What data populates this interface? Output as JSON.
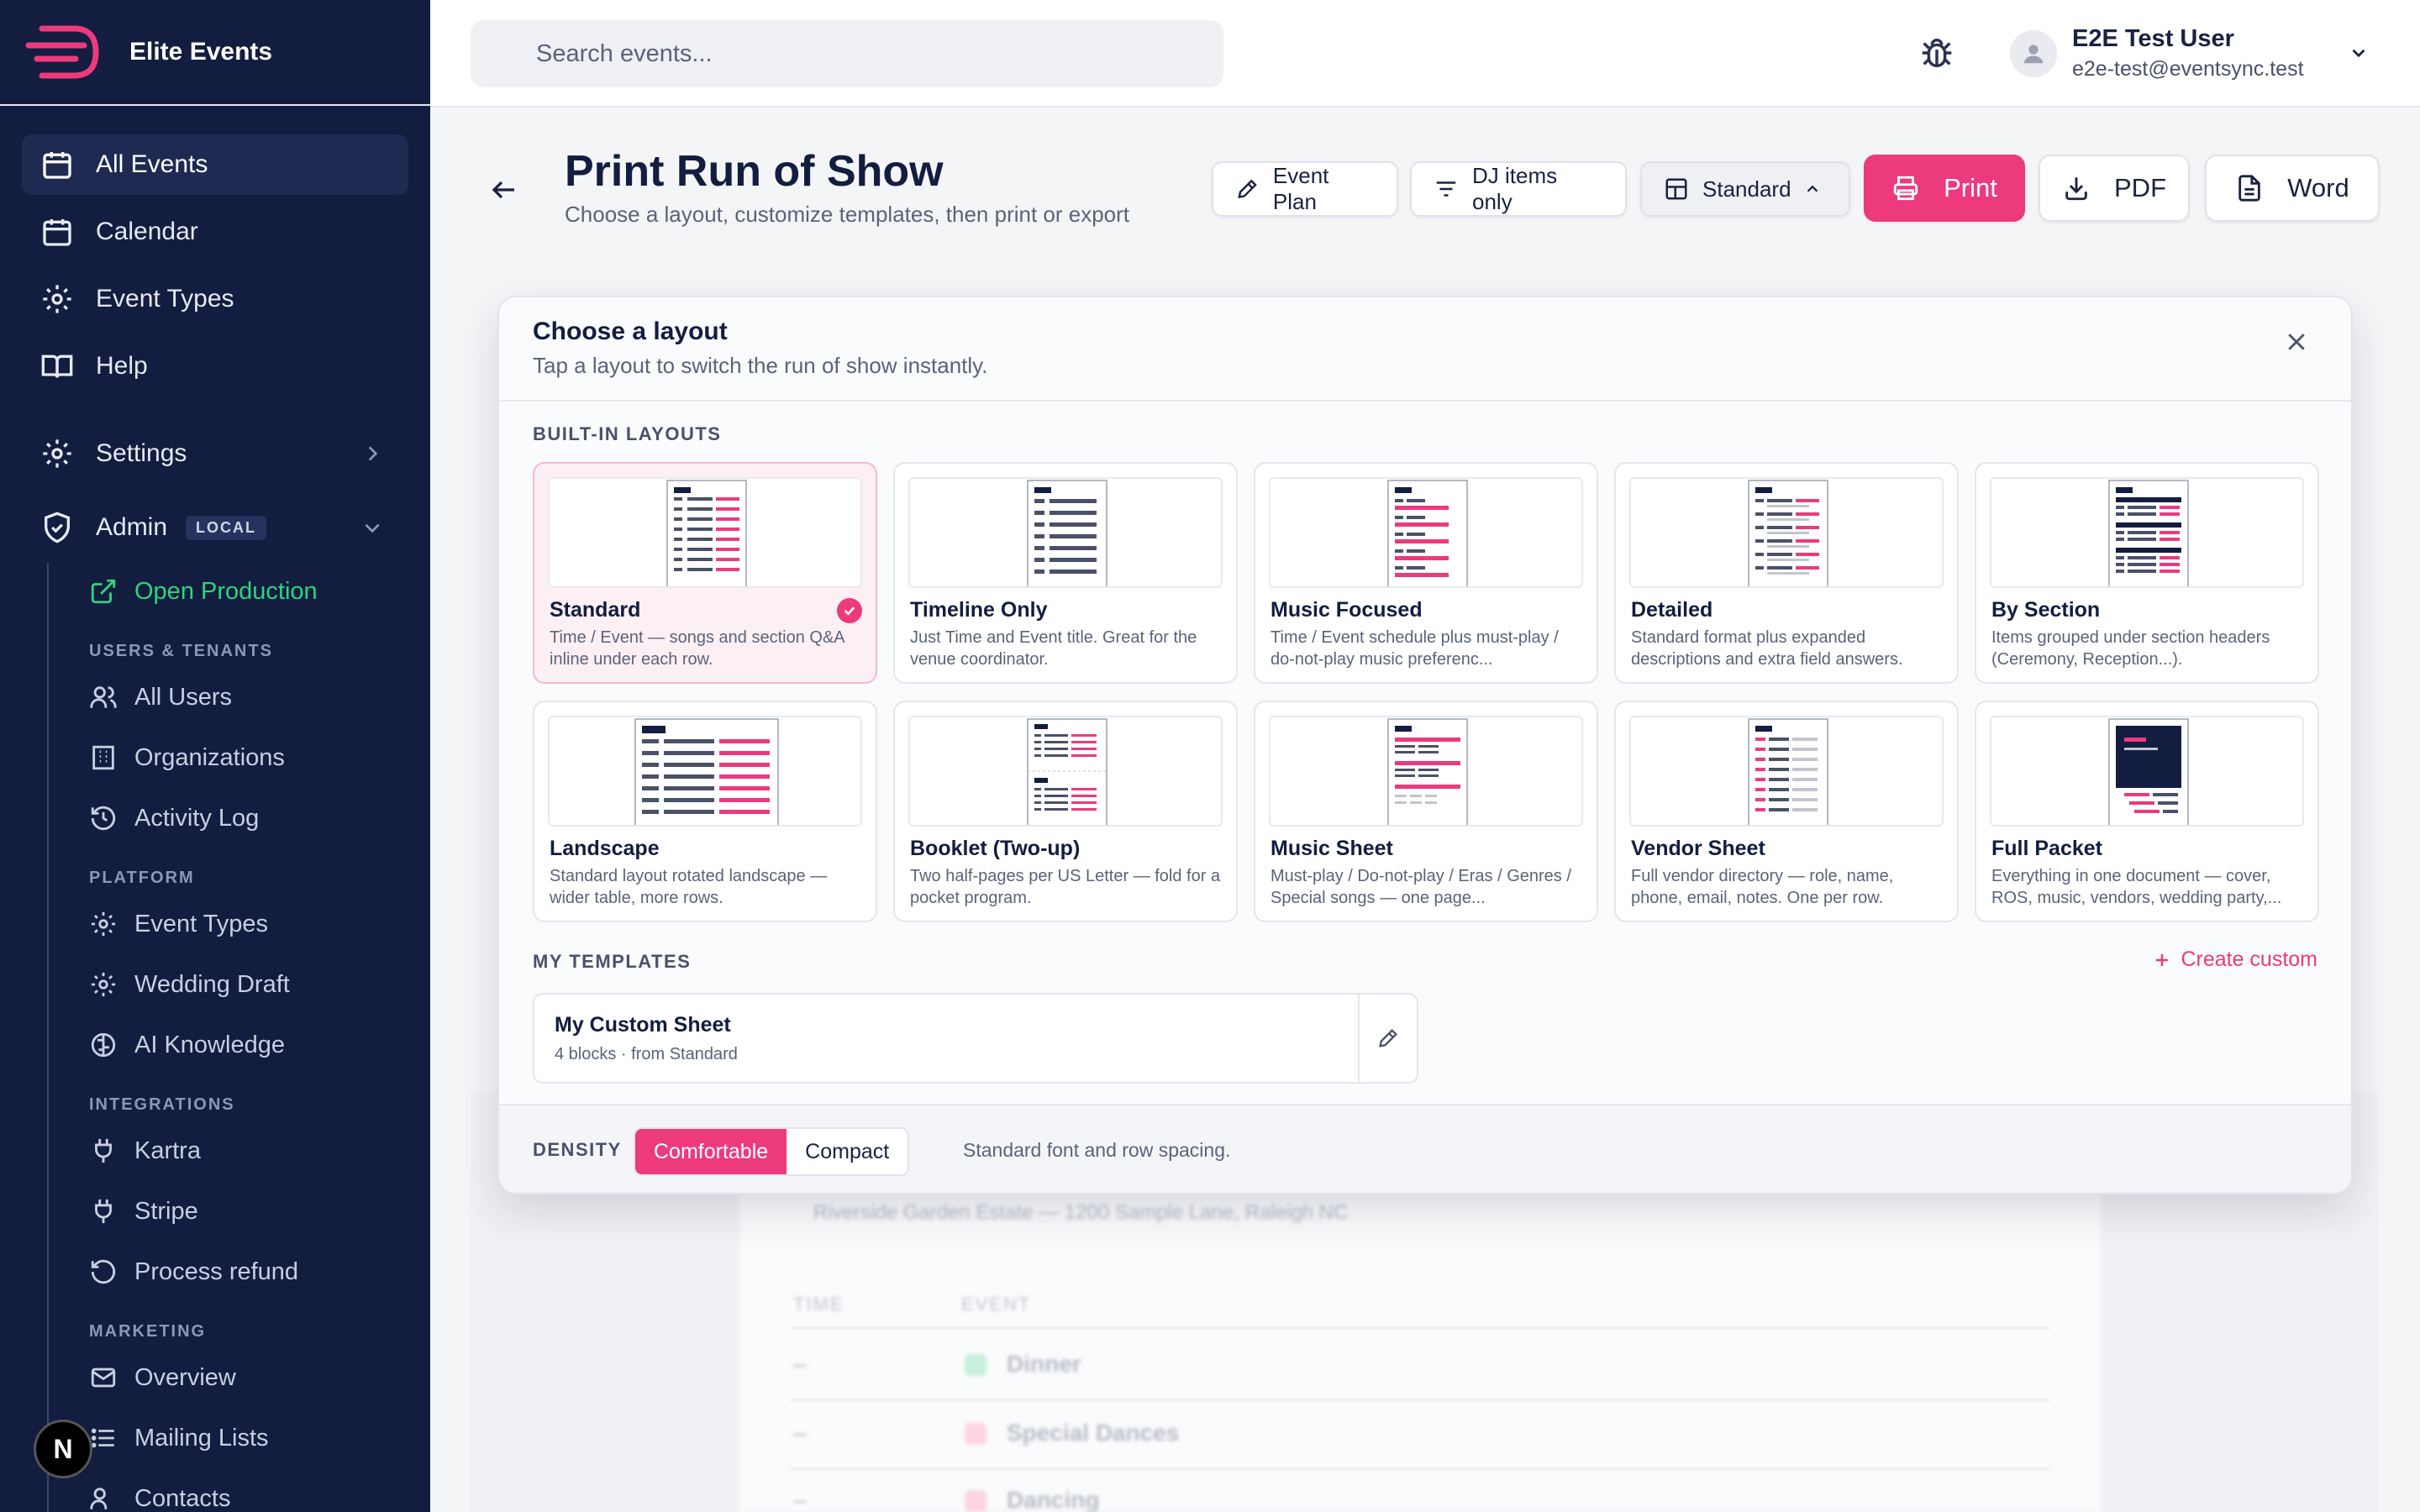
{
  "brand": {
    "name": "Elite Events"
  },
  "sidebar": {
    "nav": [
      {
        "label": "All Events",
        "icon": "calendar-icon"
      },
      {
        "label": "Calendar",
        "icon": "calendar-icon"
      },
      {
        "label": "Event Types",
        "icon": "gear-icon"
      },
      {
        "label": "Help",
        "icon": "book-icon"
      }
    ],
    "settings_label": "Settings",
    "admin_label": "Admin",
    "admin_badge": "LOCAL",
    "open_production": "Open Production",
    "sections": [
      {
        "title": "USERS & TENANTS",
        "items": [
          "All Users",
          "Organizations",
          "Activity Log"
        ]
      },
      {
        "title": "PLATFORM",
        "items": [
          "Event Types",
          "Wedding Draft",
          "AI Knowledge"
        ]
      },
      {
        "title": "INTEGRATIONS",
        "items": [
          "Kartra",
          "Stripe",
          "Process refund"
        ]
      },
      {
        "title": "MARKETING",
        "items": [
          "Overview",
          "Mailing Lists",
          "Contacts"
        ]
      }
    ],
    "n_badge": "N"
  },
  "topbar": {
    "search_placeholder": "Search events...",
    "user_name": "E2E Test User",
    "user_email": "e2e-test@eventsync.test"
  },
  "header": {
    "title": "Print Run of Show",
    "subtitle": "Choose a layout, customize templates, then print or export",
    "btn_event_plan": "Event Plan",
    "btn_dj_only": "DJ items only",
    "btn_standard": "Standard",
    "btn_print": "Print",
    "btn_pdf": "PDF",
    "btn_word": "Word"
  },
  "modal": {
    "title": "Choose a layout",
    "subtitle": "Tap a layout to switch the run of show instantly.",
    "builtin_heading": "BUILT-IN LAYOUTS",
    "layouts": [
      {
        "name": "Standard",
        "desc": "Time / Event — songs and section Q&A inline under each row.",
        "selected": true
      },
      {
        "name": "Timeline Only",
        "desc": "Just Time and Event title. Great for the venue coordinator."
      },
      {
        "name": "Music Focused",
        "desc": "Time / Event schedule plus must-play / do-not-play music preferenc..."
      },
      {
        "name": "Detailed",
        "desc": "Standard format plus expanded descriptions and extra field answers."
      },
      {
        "name": "By Section",
        "desc": "Items grouped under section headers (Ceremony, Reception...)."
      },
      {
        "name": "Landscape",
        "desc": "Standard layout rotated landscape — wider table, more rows."
      },
      {
        "name": "Booklet (Two-up)",
        "desc": "Two half-pages per US Letter — fold for a pocket program."
      },
      {
        "name": "Music Sheet",
        "desc": "Must-play / Do-not-play / Eras / Genres / Special songs — one page..."
      },
      {
        "name": "Vendor Sheet",
        "desc": "Full vendor directory — role, name, phone, email, notes. One per row."
      },
      {
        "name": "Full Packet",
        "desc": "Everything in one document — cover, ROS, music, vendors, wedding party,..."
      }
    ],
    "templates_heading": "MY TEMPLATES",
    "create_custom": "Create custom",
    "template": {
      "name": "My Custom Sheet",
      "meta": "4 blocks · from Standard"
    },
    "density_label": "DENSITY",
    "density_options": [
      "Comfortable",
      "Compact"
    ],
    "density_selected": "Comfortable",
    "density_note": "Standard font and row spacing."
  },
  "background_doc": {
    "venue": "Riverside Garden Estate — 1200 Sample Lane, Raleigh NC",
    "col_time": "TIME",
    "col_event": "EVENT",
    "rows": [
      {
        "time": "–",
        "event": "Dinner",
        "icon_color": "#7fdcb0"
      },
      {
        "time": "–",
        "event": "Special Dances",
        "icon_color": "#f5a9c4"
      },
      {
        "time": "–",
        "event": "Dancing",
        "icon_color": "#f5a9c4"
      }
    ]
  },
  "colors": {
    "accent": "#ec3a7d",
    "sidebar_bg": "#131d3f",
    "success": "#2ed37f"
  }
}
